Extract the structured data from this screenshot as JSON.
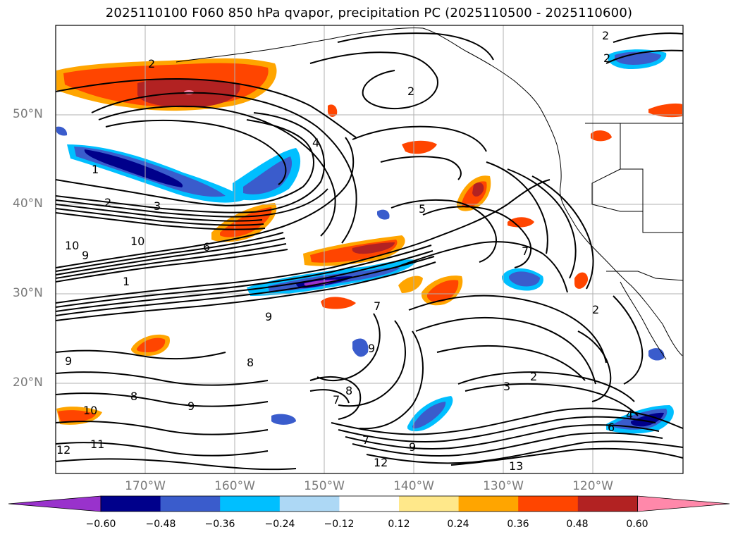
{
  "title": "2025110100 F060 850 hPa qvapor, precipitation PC (2025110500 - 2025110600)",
  "map": {
    "lat_labels": [
      "50°N",
      "40°N",
      "30°N",
      "20°N"
    ],
    "lon_labels": [
      "170°W",
      "160°W",
      "150°W",
      "140°W",
      "130°W",
      "120°W"
    ]
  },
  "contour_labels": [
    "1",
    "2",
    "2",
    "2",
    "2",
    "2",
    "3",
    "4",
    "4",
    "5",
    "6",
    "7",
    "7",
    "7",
    "8",
    "8",
    "9",
    "9",
    "9",
    "9",
    "10",
    "10",
    "11",
    "12",
    "12",
    "13",
    "1",
    "3",
    "6",
    "8",
    "9",
    "7",
    "9",
    "10",
    "2",
    "2"
  ],
  "colorbar": {
    "ticks": [
      "−0.60",
      "−0.48",
      "−0.36",
      "−0.24",
      "−0.12",
      "0.12",
      "0.24",
      "0.36",
      "0.48",
      "0.60"
    ],
    "colors": [
      "#9932cc",
      "#00008b",
      "#3a5ccc",
      "#00bfff",
      "#add8f5",
      "#ffffff",
      "#ffe88a",
      "#ffa500",
      "#ff4500",
      "#b22222",
      "#ff88aa"
    ]
  }
}
